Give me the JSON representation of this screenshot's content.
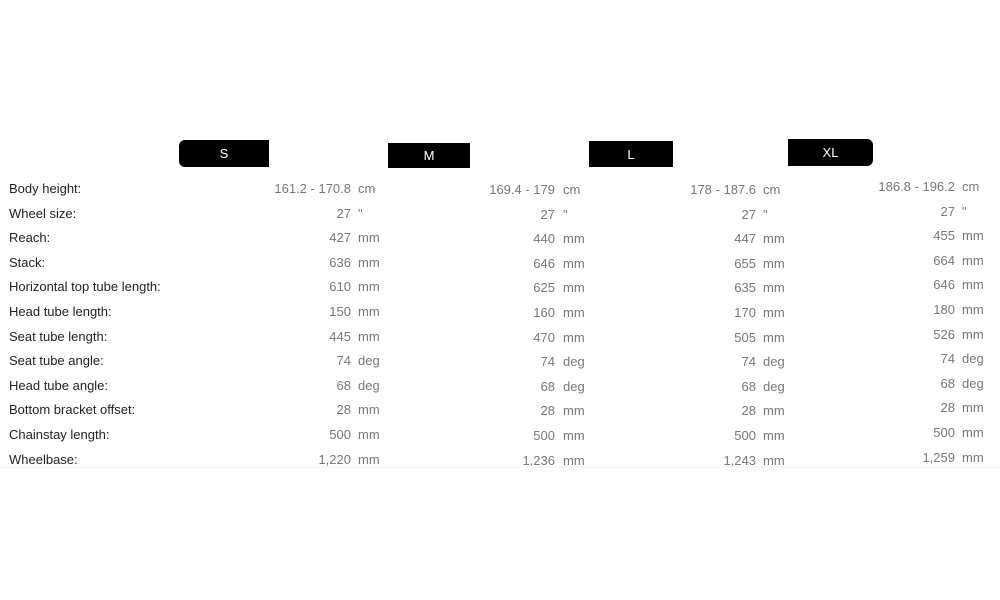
{
  "sizes": [
    "S",
    "M",
    "L",
    "XL"
  ],
  "rows": [
    {
      "label": "Body height:",
      "values": [
        "161.2 - 170.8",
        "169.4 - 179",
        "178 - 187.6",
        "186.8 - 196.2"
      ],
      "unit": "cm"
    },
    {
      "label": "Wheel size:",
      "values": [
        "27",
        "27",
        "27",
        "27"
      ],
      "unit": "\""
    },
    {
      "label": "Reach:",
      "values": [
        "427",
        "440",
        "447",
        "455"
      ],
      "unit": "mm"
    },
    {
      "label": "Stack:",
      "values": [
        "636",
        "646",
        "655",
        "664"
      ],
      "unit": "mm"
    },
    {
      "label": "Horizontal top tube length:",
      "values": [
        "610",
        "625",
        "635",
        "646"
      ],
      "unit": "mm"
    },
    {
      "label": "Head tube length:",
      "values": [
        "150",
        "160",
        "170",
        "180"
      ],
      "unit": "mm"
    },
    {
      "label": "Seat tube length:",
      "values": [
        "445",
        "470",
        "505",
        "526"
      ],
      "unit": "mm"
    },
    {
      "label": "Seat tube angle:",
      "values": [
        "74",
        "74",
        "74",
        "74"
      ],
      "unit": "deg"
    },
    {
      "label": "Head tube angle:",
      "values": [
        "68",
        "68",
        "68",
        "68"
      ],
      "unit": "deg"
    },
    {
      "label": "Bottom bracket offset:",
      "values": [
        "28",
        "28",
        "28",
        "28"
      ],
      "unit": "mm"
    },
    {
      "label": "Chainstay length:",
      "values": [
        "500",
        "500",
        "500",
        "500"
      ],
      "unit": "mm"
    },
    {
      "label": "Wheelbase:",
      "values": [
        "1,220",
        "1,236",
        "1,243",
        "1,259"
      ],
      "unit": "mm"
    }
  ]
}
